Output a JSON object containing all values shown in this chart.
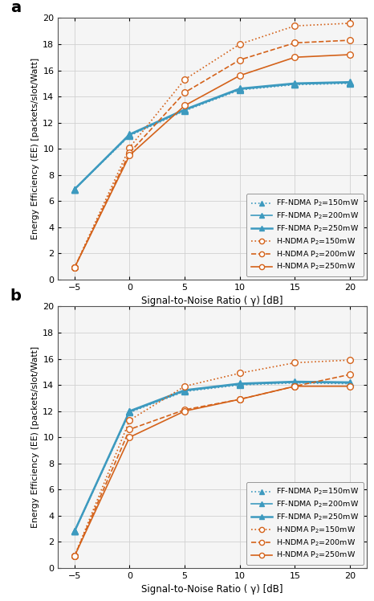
{
  "x": [
    -5,
    0,
    5,
    10,
    15,
    20
  ],
  "panel_a": {
    "FF_150": [
      6.9,
      11.0,
      12.9,
      14.5,
      14.9,
      15.0
    ],
    "FF_200": [
      6.9,
      11.05,
      12.95,
      14.55,
      14.95,
      15.05
    ],
    "FF_250": [
      6.9,
      11.1,
      13.0,
      14.6,
      15.0,
      15.1
    ],
    "H_150": [
      0.9,
      10.1,
      15.3,
      18.0,
      19.4,
      19.6
    ],
    "H_200": [
      0.9,
      9.7,
      14.3,
      16.8,
      18.1,
      18.3
    ],
    "H_250": [
      0.9,
      9.5,
      13.3,
      15.6,
      17.0,
      17.2
    ]
  },
  "panel_b": {
    "FF_150": [
      2.8,
      11.9,
      13.5,
      14.0,
      14.15,
      14.1
    ],
    "FF_200": [
      2.8,
      11.95,
      13.55,
      14.05,
      14.2,
      14.15
    ],
    "FF_250": [
      2.8,
      12.0,
      13.6,
      14.1,
      14.25,
      14.2
    ],
    "H_150": [
      0.9,
      11.3,
      13.9,
      14.9,
      15.7,
      15.9
    ],
    "H_200": [
      0.9,
      10.6,
      12.1,
      12.9,
      13.9,
      14.8
    ],
    "H_250": [
      0.9,
      10.0,
      12.0,
      12.9,
      13.9,
      13.9
    ]
  },
  "blue_color": "#3d9abf",
  "orange_color": "#d4621a",
  "ylabel": "Energy Efficiency (EE) [packets/slot/Watt]",
  "xlabel": "Signal-to-Noise Ratio ( γ) [dB]",
  "ylim": [
    0,
    20
  ],
  "yticks": [
    0,
    2,
    4,
    6,
    8,
    10,
    12,
    14,
    16,
    18,
    20
  ],
  "xticks": [
    -5,
    0,
    5,
    10,
    15,
    20
  ],
  "grid_color": "#d0d0d0",
  "bg_color": "#f5f5f5"
}
